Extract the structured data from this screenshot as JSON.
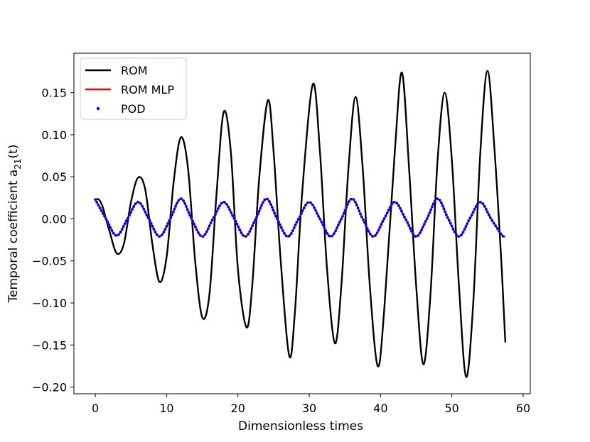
{
  "chart_data": {
    "type": "line",
    "xlabel": "Dimensionless times",
    "ylabel": "Temporal coefficient a",
    "ylabel_sub": "21",
    "ylabel_suffix": "(t)",
    "xlim": [
      -3,
      61
    ],
    "ylim": [
      -0.208,
      0.197
    ],
    "xticks": [
      0,
      10,
      20,
      30,
      40,
      50,
      60
    ],
    "xtick_labels": [
      "0",
      "10",
      "20",
      "30",
      "40",
      "50",
      "60"
    ],
    "yticks": [
      -0.2,
      -0.15,
      -0.1,
      -0.05,
      0.0,
      0.05,
      0.1,
      0.15
    ],
    "ytick_labels": [
      "−0.20",
      "−0.15",
      "−0.10",
      "−0.05",
      "0.00",
      "0.05",
      "0.10",
      "0.15"
    ],
    "grid": false,
    "legend_position": "top-left",
    "series": [
      {
        "name": "ROM",
        "style": "line",
        "color": "#000000",
        "x": [
          0,
          0.5,
          1.0,
          1.5,
          2.0,
          3.0,
          4.0,
          5.0,
          6.0,
          7.0,
          8.0,
          9.0,
          10.0,
          11.0,
          12.0,
          13.0,
          14.0,
          15.0,
          16.0,
          17.0,
          18.0,
          19.0,
          20.0,
          21.2,
          22.0,
          23.0,
          24.2,
          25.0,
          26.0,
          27.2,
          28.0,
          29.0,
          30.5,
          31.5,
          32.5,
          33.6,
          34.5,
          35.5,
          36.5,
          37.5,
          38.5,
          39.6,
          40.5,
          42.0,
          43.0,
          44.0,
          45.0,
          46.0,
          47.0,
          48.0,
          49.0,
          50.0,
          51.0,
          52.0,
          53.0,
          54.0,
          55.0,
          56.0,
          57.0,
          57.5
        ],
        "y": [
          0.023,
          0.023,
          0.015,
          0.0,
          -0.015,
          -0.041,
          -0.03,
          0.02,
          0.049,
          0.035,
          -0.03,
          -0.075,
          -0.045,
          0.045,
          0.097,
          0.06,
          -0.05,
          -0.117,
          -0.09,
          0.03,
          0.127,
          0.08,
          -0.06,
          -0.129,
          -0.08,
          0.05,
          0.141,
          0.08,
          -0.05,
          -0.163,
          -0.11,
          0.03,
          0.16,
          0.08,
          -0.06,
          -0.148,
          -0.08,
          0.06,
          0.145,
          0.06,
          -0.08,
          -0.175,
          -0.11,
          0.08,
          0.174,
          0.06,
          -0.08,
          -0.173,
          -0.09,
          0.07,
          0.15,
          0.07,
          -0.08,
          -0.188,
          -0.1,
          0.08,
          0.176,
          0.08,
          -0.06,
          -0.147
        ]
      },
      {
        "name": "ROM MLP",
        "style": "line",
        "color": "#ff0000",
        "x": [
          0,
          1.5,
          3.0,
          4.5,
          6.0,
          7.5,
          9.0,
          10.5,
          12.0,
          13.5,
          15.0,
          16.5,
          18.0,
          19.5,
          21.0,
          22.5,
          24.0,
          25.5,
          27.0,
          28.5,
          30.0,
          31.5,
          33.0,
          34.5,
          36.0,
          37.5,
          39.0,
          40.5,
          42.0,
          43.5,
          45.0,
          46.5,
          48.0,
          49.5,
          51.0,
          52.5,
          54.0,
          55.5,
          57.0,
          57.5
        ],
        "y": [
          0.023,
          0.0,
          -0.02,
          0.0,
          0.02,
          0.0,
          -0.021,
          0.0,
          0.024,
          0.0,
          -0.021,
          0.0,
          0.02,
          0.0,
          -0.021,
          0.0,
          0.024,
          0.0,
          -0.021,
          0.0,
          0.02,
          0.0,
          -0.021,
          0.0,
          0.024,
          0.0,
          -0.021,
          0.0,
          0.02,
          0.0,
          -0.021,
          0.0,
          0.024,
          0.0,
          -0.021,
          0.0,
          0.02,
          0.0,
          -0.019,
          -0.021
        ]
      },
      {
        "name": "POD",
        "style": "markers",
        "color": "#0000ff",
        "x": [
          0,
          1.5,
          3.0,
          4.5,
          6.0,
          7.5,
          9.0,
          10.5,
          12.0,
          13.5,
          15.0,
          16.5,
          18.0,
          19.5,
          21.0,
          22.5,
          24.0,
          25.5,
          27.0,
          28.5,
          30.0,
          31.5,
          33.0,
          34.5,
          36.0,
          37.5,
          39.0,
          40.5,
          42.0,
          43.5,
          45.0,
          46.5,
          48.0,
          49.5,
          51.0,
          52.5,
          54.0,
          55.5,
          57.0,
          57.5
        ],
        "y": [
          0.023,
          0.0,
          -0.02,
          0.0,
          0.02,
          0.0,
          -0.021,
          0.0,
          0.024,
          0.0,
          -0.021,
          0.0,
          0.02,
          0.0,
          -0.021,
          0.0,
          0.024,
          0.0,
          -0.021,
          0.0,
          0.02,
          0.0,
          -0.021,
          0.0,
          0.024,
          0.0,
          -0.021,
          0.0,
          0.02,
          0.0,
          -0.021,
          0.0,
          0.024,
          0.0,
          -0.021,
          0.0,
          0.02,
          0.0,
          -0.019,
          -0.021
        ]
      }
    ]
  }
}
